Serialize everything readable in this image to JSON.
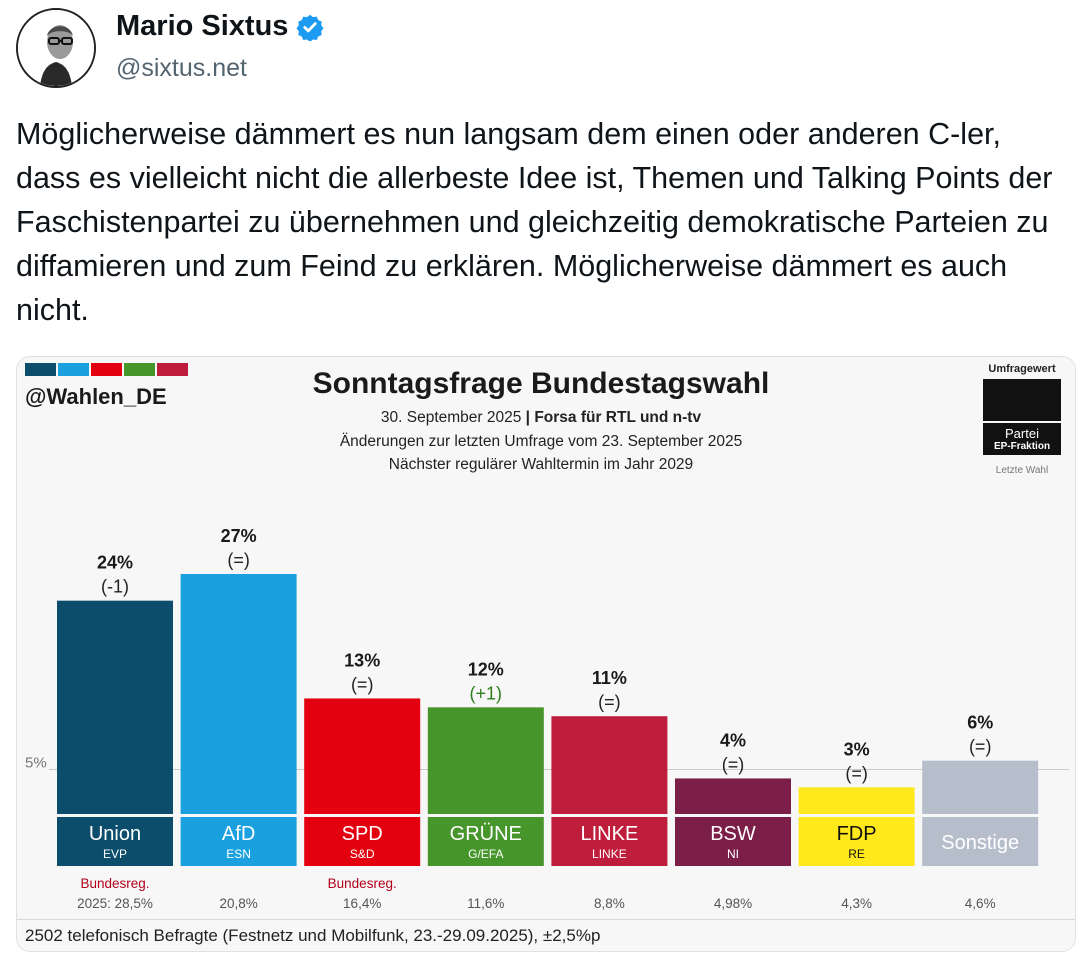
{
  "post": {
    "author_name": "Mario Sixtus",
    "handle": "@sixtus.net",
    "text": "Möglicherweise dämmert es nun langsam dem einen oder anderen C-ler, dass es vielleicht nicht die allerbeste Idee ist, Themen und Talking Points der Faschistenpartei zu übernehmen und gleichzeitig demokratische Parteien zu diffamieren und zum Feind zu erklären. Möglicherweise dämmert es auch nicht."
  },
  "card": {
    "source": "@Wahlen_DE",
    "strip_colors": [
      "#0b4d6b",
      "#1aa0de",
      "#e3000f",
      "#46962b",
      "#be1e3c"
    ],
    "subtitle_date": "30. September 2025",
    "subtitle_separator": "|",
    "subtitle_pollster": "Forsa für RTL und n-tv",
    "subtitle_changes": "Änderungen zur letzten Umfrage vom 23. September 2025",
    "subtitle_next": "Nächster regulärer Wahltermin im Jahr 2029",
    "legend": {
      "value_label": "Umfragewert",
      "party_label": "Partei",
      "group_label": "EP-Fraktion",
      "last_label": "Letzte Wahl"
    },
    "footer": "2502 telefonisch Befragte (Festnetz und Mobilfunk, 23.-29.09.2025), ±2,5%p"
  },
  "chart_data": {
    "type": "bar",
    "title": "Sonntagsfrage Bundestagswahl",
    "threshold_label": "5%",
    "threshold": 5,
    "categories": [
      "Union",
      "AfD",
      "SPD",
      "GRÜNE",
      "LINKE",
      "BSW",
      "FDP",
      "Sonstige"
    ],
    "groups": [
      "EVP",
      "ESN",
      "S&D",
      "G/EFA",
      "LINKE",
      "NI",
      "RE",
      ""
    ],
    "values": [
      24,
      27,
      13,
      12,
      11,
      4,
      3,
      6
    ],
    "value_labels": [
      "24%",
      "27%",
      "13%",
      "12%",
      "11%",
      "4%",
      "3%",
      "6%"
    ],
    "change_labels": [
      "(-1)",
      "(=)",
      "(=)",
      "(+1)",
      "(=)",
      "(=)",
      "(=)",
      "(=)"
    ],
    "change_colors": [
      "#222222",
      "#222222",
      "#222222",
      "#2e7d1e",
      "#222222",
      "#222222",
      "#222222",
      "#222222"
    ],
    "colors": [
      "#0b4d6b",
      "#1aa0de",
      "#e3000f",
      "#46962b",
      "#be1e3c",
      "#7b1e48",
      "#ffe81b",
      "#b6becc"
    ],
    "label_colors": [
      "#ffffff",
      "#ffffff",
      "#ffffff",
      "#ffffff",
      "#ffffff",
      "#ffffff",
      "#111111",
      "#ffffff"
    ],
    "govt_labels": [
      "Bundesreg.",
      "",
      "Bundesreg.",
      "",
      "",
      "",
      "",
      ""
    ],
    "last_election": [
      "2025: 28,5%",
      "20,8%",
      "16,4%",
      "11,6%",
      "8,8%",
      "4,98%",
      "4,3%",
      "4,6%"
    ],
    "ylim": [
      0,
      27
    ]
  }
}
